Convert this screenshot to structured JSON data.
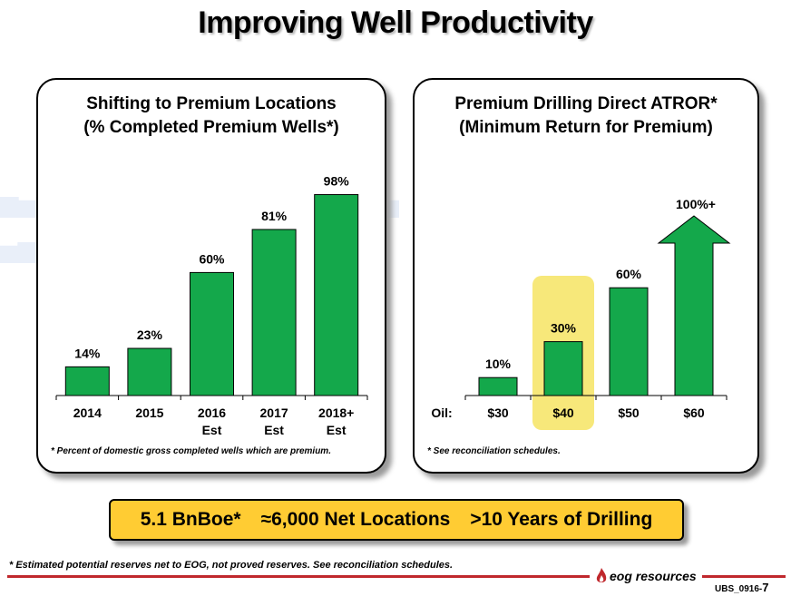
{
  "title": "Improving Well Productivity",
  "chart_data": [
    {
      "type": "bar",
      "title_line1": "Shifting to Premium Locations",
      "title_line2": "(% Completed Premium Wells*)",
      "categories": [
        [
          "2014"
        ],
        [
          "2015"
        ],
        [
          "2016",
          "Est"
        ],
        [
          "2017",
          "Est"
        ],
        [
          "2018+",
          "Est"
        ]
      ],
      "values": [
        14,
        23,
        60,
        81,
        98
      ],
      "value_labels": [
        "14%",
        "23%",
        "60%",
        "81%",
        "98%"
      ],
      "ylim": [
        0,
        100
      ],
      "grid": false,
      "color": "#14a84b",
      "footnote": "* Percent of domestic gross completed wells which are premium."
    },
    {
      "type": "bar",
      "title_line1": "Premium Drilling Direct ATROR*",
      "title_line2": "(Minimum Return for Premium)",
      "axis_prefix": "Oil:",
      "categories": [
        [
          "$30"
        ],
        [
          "$40"
        ],
        [
          "$50"
        ],
        [
          "$60"
        ]
      ],
      "values": [
        10,
        30,
        60,
        100
      ],
      "value_labels": [
        "10%",
        "30%",
        "60%",
        "100%+"
      ],
      "last_bar_style": "arrow",
      "highlighted_category": "$40",
      "highlight_color": "#f7e87a",
      "ylim": [
        0,
        100
      ],
      "grid": false,
      "color": "#14a84b",
      "footnote": "* See reconciliation schedules."
    }
  ],
  "summary": {
    "reserves": "5.1 BnBoe*",
    "locations": "≈6,000 Net Locations",
    "years": ">10 Years of Drilling",
    "color": "#ffcc33"
  },
  "bottom_footnote": "* Estimated potential reserves net to EOG, not proved reserves. See reconciliation schedules.",
  "logo_text": "eog resources",
  "page_code": "UBS_0916-",
  "page_number": "7",
  "rule_color": "#c0282d"
}
